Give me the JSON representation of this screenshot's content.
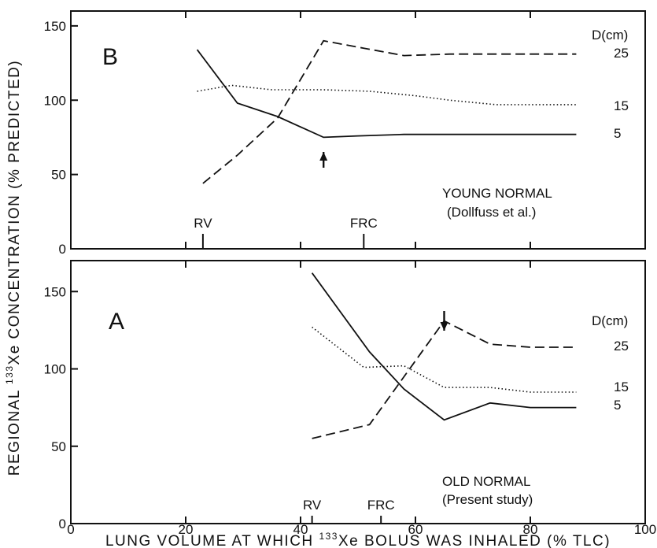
{
  "chart_data": [
    {
      "type": "line",
      "panel": "B",
      "xlim": [
        0,
        100
      ],
      "ylim": [
        0,
        160
      ],
      "yticks": [
        0,
        50,
        100,
        150
      ],
      "grid": false,
      "legend_title": "D(cm)",
      "legend_placement": "line-end labels at right",
      "series": [
        {
          "name": "5",
          "style": "solid",
          "x": [
            22,
            29,
            36,
            44,
            50,
            58,
            66,
            74,
            82,
            88
          ],
          "y": [
            134,
            98,
            89,
            75,
            76,
            77,
            77,
            77,
            77,
            77
          ]
        },
        {
          "name": "15",
          "style": "dotted",
          "x": [
            22,
            28,
            35,
            44,
            52,
            60,
            66,
            74,
            82,
            88
          ],
          "y": [
            106,
            110,
            107,
            107,
            106,
            103,
            100,
            97,
            97,
            97
          ]
        },
        {
          "name": "25",
          "style": "dashed",
          "x": [
            23,
            29,
            36,
            44,
            51,
            58,
            66,
            74,
            82,
            88
          ],
          "y": [
            44,
            63,
            88,
            140,
            135,
            130,
            131,
            131,
            131,
            131
          ]
        }
      ],
      "markers": [
        {
          "label": "RV",
          "x": 23
        },
        {
          "label": "FRC",
          "x": 51
        }
      ],
      "arrow": {
        "x": 44,
        "direction": "up"
      },
      "annotations": [
        "YOUNG NORMAL",
        "(Dollfuss et al.)"
      ]
    },
    {
      "type": "line",
      "panel": "A",
      "xlim": [
        0,
        100
      ],
      "ylim": [
        0,
        170
      ],
      "yticks": [
        0,
        50,
        100,
        150
      ],
      "grid": false,
      "legend_title": "D(cm)",
      "legend_placement": "line-end labels at right",
      "series": [
        {
          "name": "5",
          "style": "solid",
          "x": [
            42,
            52,
            58,
            65,
            73,
            80,
            88
          ],
          "y": [
            162,
            111,
            87,
            67,
            78,
            75,
            75
          ]
        },
        {
          "name": "15",
          "style": "dotted",
          "x": [
            42,
            51,
            58,
            65,
            73,
            80,
            88
          ],
          "y": [
            127,
            101,
            102,
            88,
            88,
            85,
            85
          ]
        },
        {
          "name": "25",
          "style": "dashed",
          "x": [
            42,
            52,
            65,
            73,
            80,
            88
          ],
          "y": [
            55,
            64,
            131,
            116,
            114,
            114
          ]
        }
      ],
      "markers": [
        {
          "label": "RV",
          "x": 42
        },
        {
          "label": "FRC",
          "x": 54
        }
      ],
      "arrow": {
        "x": 65,
        "direction": "down"
      },
      "annotations": [
        "OLD NORMAL",
        "(Present study)"
      ]
    }
  ],
  "axes": {
    "x_ticks": [
      "0",
      "20",
      "40",
      "60",
      "80",
      "100"
    ],
    "x_label_left": "LUNG VOLUME AT WHICH ",
    "x_label_sup": "133",
    "x_label_right": "Xe BOLUS WAS INHALED (% TLC)",
    "y_label_left": "REGIONAL ",
    "y_label_sup": "133",
    "y_label_right": "Xe CONCENTRATION (% PREDICTED)"
  }
}
